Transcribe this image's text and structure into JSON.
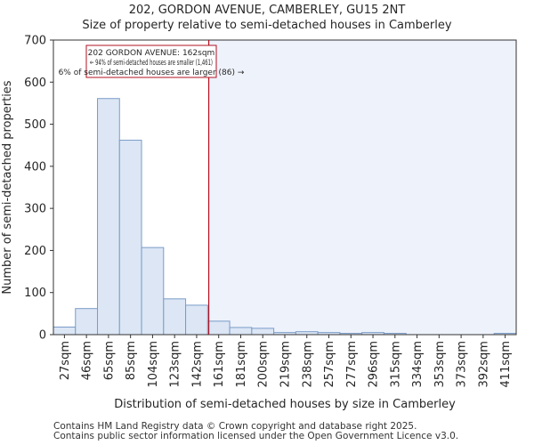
{
  "title_line1": "202, GORDON AVENUE, CAMBERLEY, GU15 2NT",
  "title_line2": "Size of property relative to semi-detached houses in Camberley",
  "footer_line1": "Contains HM Land Registry data © Crown copyright and database right 2025.",
  "footer_line2": "Contains public sector information licensed under the Open Government Licence v3.0.",
  "colors": {
    "bar_fill": "#dce6f5",
    "bar_stroke": "#7a9cc7",
    "highlight_bg": "#eef2fb",
    "marker": "#b01020",
    "axis": "#333333"
  },
  "chart_data": {
    "type": "bar",
    "title": "Size of property relative to semi-detached houses in Camberley",
    "xlabel": "Distribution of semi-detached houses by size in Camberley",
    "ylabel": "Number of semi-detached properties",
    "ylim": [
      0,
      700
    ],
    "yticks": [
      0,
      100,
      200,
      300,
      400,
      500,
      600,
      700
    ],
    "categories": [
      "27sqm",
      "46sqm",
      "65sqm",
      "85sqm",
      "104sqm",
      "123sqm",
      "142sqm",
      "161sqm",
      "181sqm",
      "200sqm",
      "219sqm",
      "238sqm",
      "257sqm",
      "277sqm",
      "296sqm",
      "315sqm",
      "334sqm",
      "353sqm",
      "373sqm",
      "392sqm",
      "411sqm"
    ],
    "values": [
      18,
      62,
      561,
      462,
      207,
      85,
      70,
      32,
      17,
      15,
      5,
      7,
      5,
      3,
      5,
      3,
      0,
      0,
      0,
      0,
      3
    ],
    "marker_value": 162,
    "marker_bin_position": 7.05,
    "annotation": {
      "line1": "202 GORDON AVENUE: 162sqm",
      "line2": "← 94% of semi-detached houses are smaller (1,461)",
      "line3": "6% of semi-detached houses are larger (86) →"
    }
  }
}
